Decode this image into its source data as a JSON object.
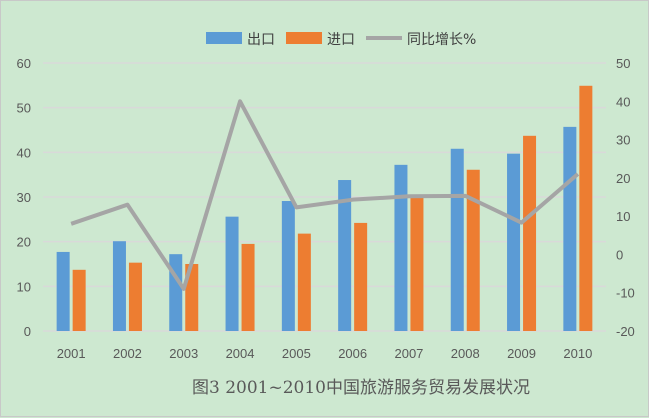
{
  "chart_data": {
    "type": "bar",
    "title": "",
    "caption": "图3  2001~2010中国旅游服务贸易发展状况",
    "categories": [
      "2001",
      "2002",
      "2003",
      "2004",
      "2005",
      "2006",
      "2007",
      "2008",
      "2009",
      "2010"
    ],
    "series": [
      {
        "name": "出口",
        "type": "bar",
        "axis": "left",
        "color": "#5b9bd5",
        "values": [
          17.7,
          20.1,
          17.2,
          25.6,
          29.1,
          33.8,
          37.2,
          40.8,
          39.7,
          45.7
        ]
      },
      {
        "name": "进口",
        "type": "bar",
        "axis": "left",
        "color": "#ed7d31",
        "values": [
          13.7,
          15.3,
          15.0,
          19.5,
          21.8,
          24.2,
          29.9,
          36.1,
          43.7,
          54.9
        ]
      },
      {
        "name": "同比增长%",
        "type": "line",
        "axis": "right",
        "color": "#a5a5a5",
        "values": [
          8.0,
          13.0,
          -9.0,
          40.0,
          12.3,
          14.3,
          15.2,
          15.3,
          8.3,
          21.0
        ]
      }
    ],
    "ylim": [
      0,
      60
    ],
    "yticks": [
      0,
      10,
      20,
      30,
      40,
      50,
      60
    ],
    "y2lim": [
      -20,
      50
    ],
    "y2ticks": [
      -20,
      -10,
      0,
      10,
      20,
      30,
      40,
      50
    ],
    "grid": true,
    "legend": "top-center",
    "xlabel": "",
    "ylabel": "",
    "y2label": ""
  }
}
